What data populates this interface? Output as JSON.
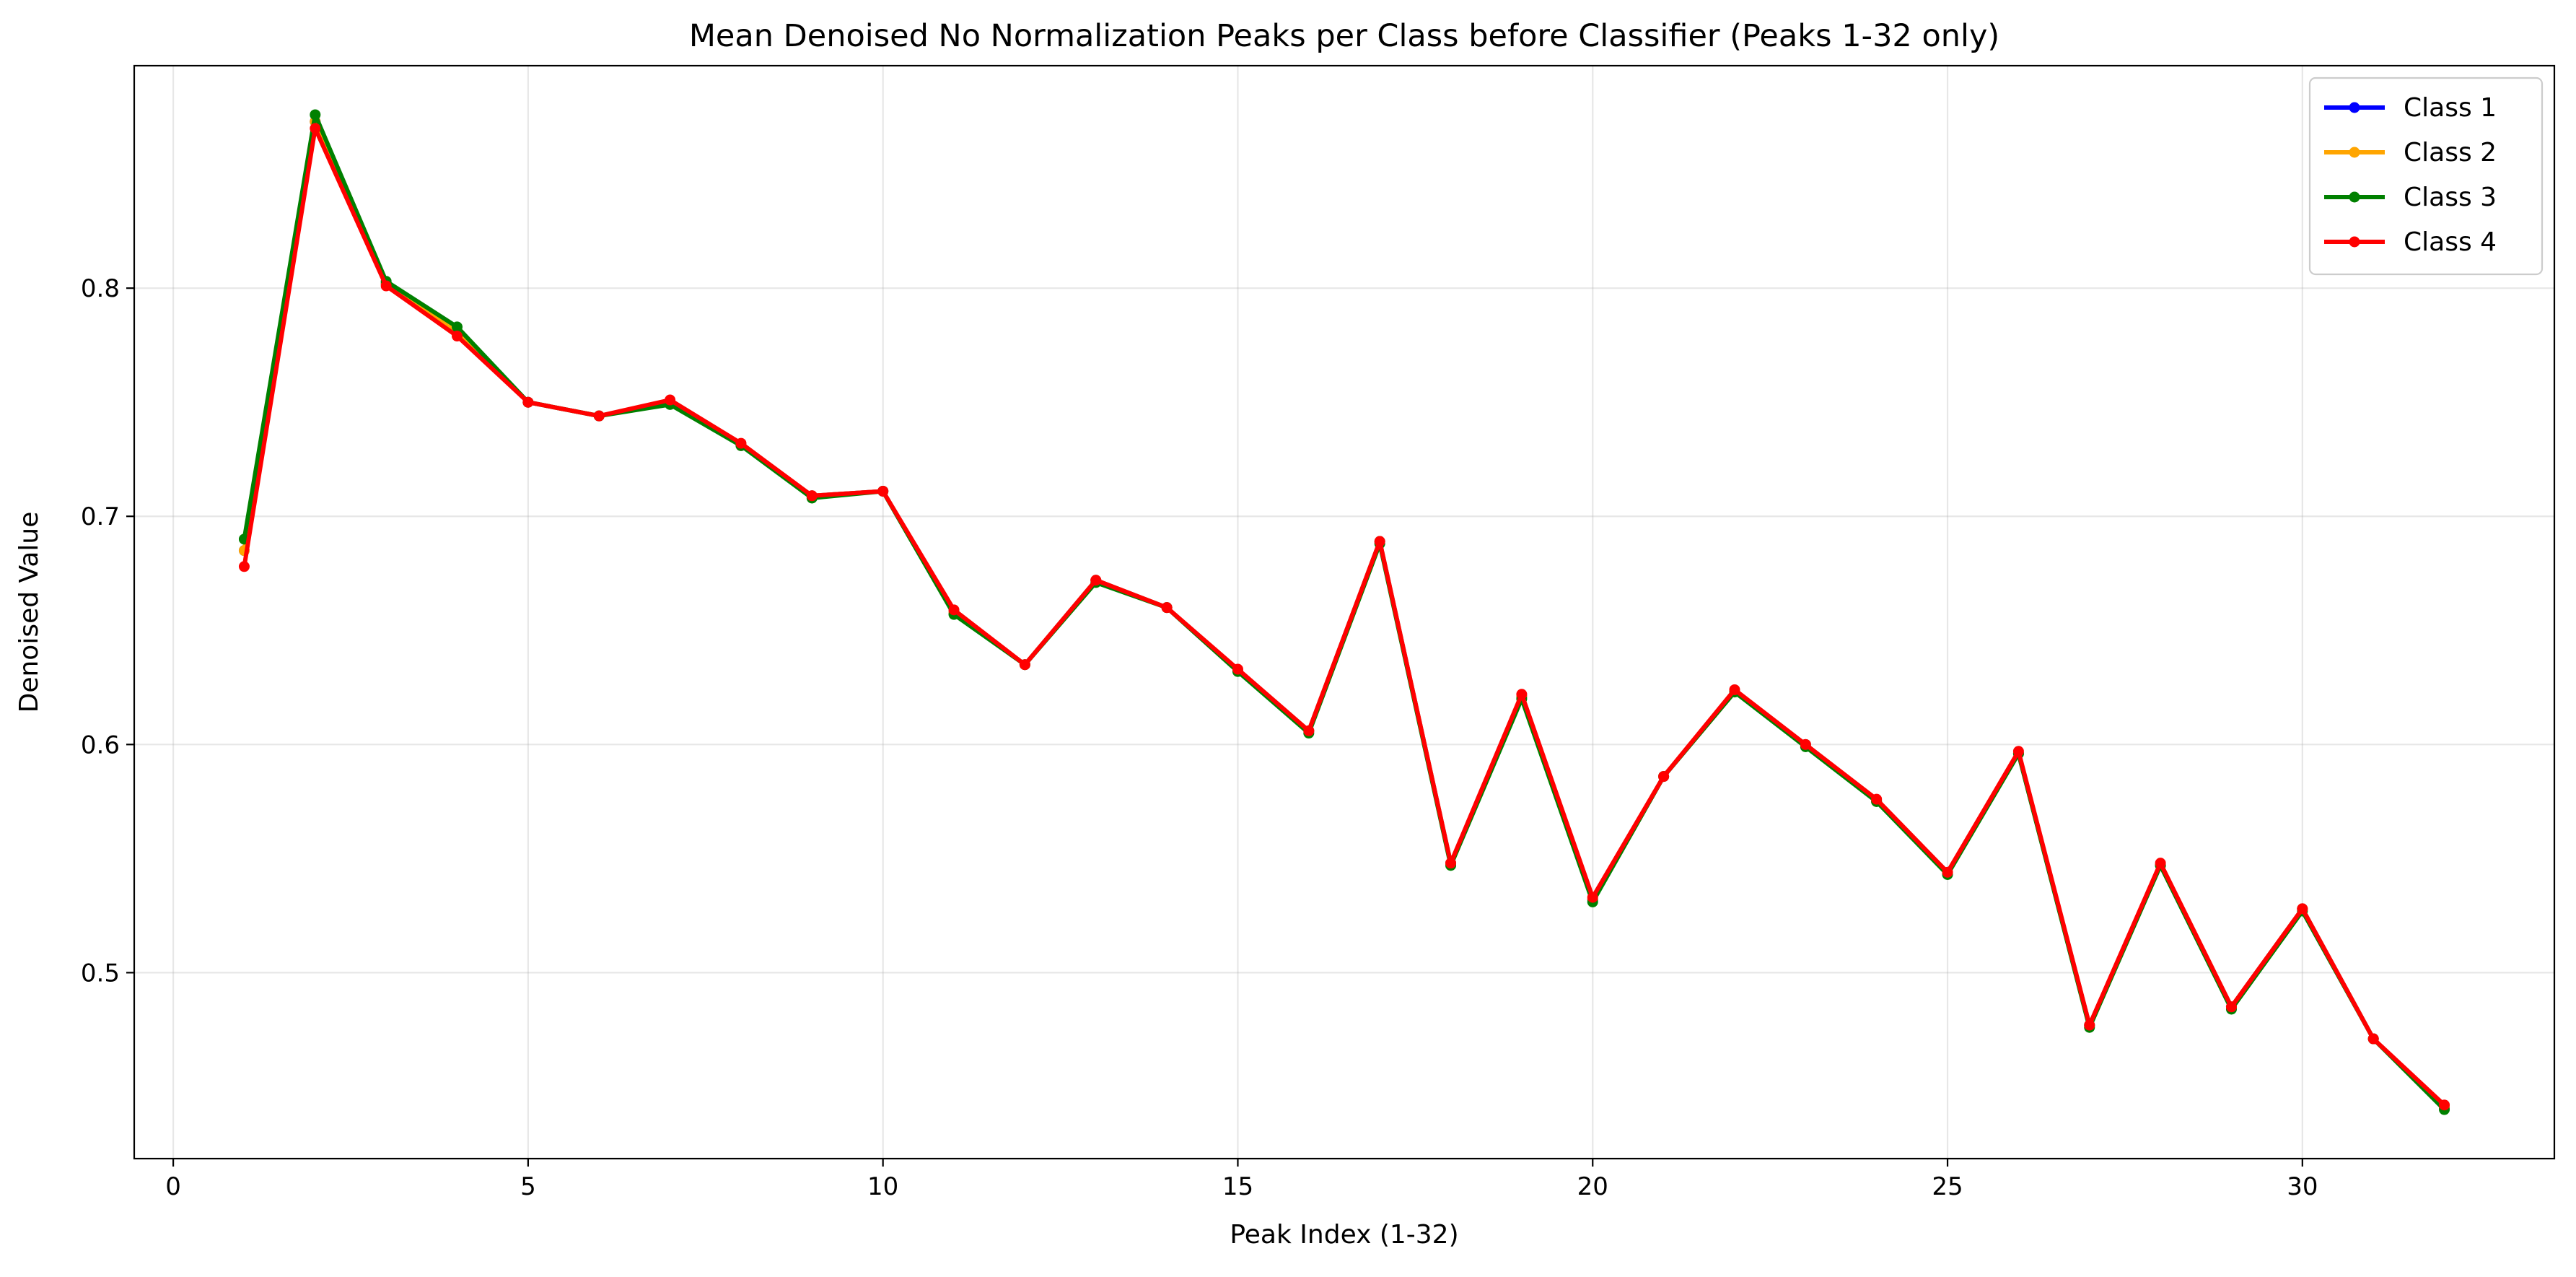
{
  "chart_data": {
    "type": "line",
    "title": "Mean Denoised No Normalization Peaks per Class before Classifier (Peaks 1-32 only)",
    "xlabel": "Peak Index (1-32)",
    "ylabel": "Denoised Value",
    "xlim": [
      -0.55,
      33.55
    ],
    "ylim": [
      0.4185,
      0.8975
    ],
    "xticks": [
      0,
      5,
      10,
      15,
      20,
      25,
      30
    ],
    "xtick_labels": [
      "0",
      "5",
      "10",
      "15",
      "20",
      "25",
      "30"
    ],
    "yticks": [
      0.5,
      0.6,
      0.7,
      0.8
    ],
    "ytick_labels": [
      "0.5",
      "0.6",
      "0.7",
      "0.8"
    ],
    "grid": true,
    "legend_position": "top-right",
    "x": [
      1,
      2,
      3,
      4,
      5,
      6,
      7,
      8,
      9,
      10,
      11,
      12,
      13,
      14,
      15,
      16,
      17,
      18,
      19,
      20,
      21,
      22,
      23,
      24,
      25,
      26,
      27,
      28,
      29,
      30,
      31,
      32
    ],
    "series": [
      {
        "name": "Class 1",
        "color": "#0000ff",
        "values": [
          0.685,
          0.873,
          0.802,
          0.781,
          0.75,
          0.744,
          0.75,
          0.731,
          0.709,
          0.711,
          0.658,
          0.635,
          0.672,
          0.66,
          0.632,
          0.606,
          0.689,
          0.548,
          0.621,
          0.532,
          0.586,
          0.623,
          0.6,
          0.575,
          0.544,
          0.596,
          0.477,
          0.547,
          0.485,
          0.528,
          0.471,
          0.441
        ]
      },
      {
        "name": "Class 2",
        "color": "#ffa500",
        "values": [
          0.685,
          0.873,
          0.802,
          0.781,
          0.75,
          0.744,
          0.75,
          0.731,
          0.709,
          0.711,
          0.658,
          0.635,
          0.672,
          0.66,
          0.632,
          0.606,
          0.689,
          0.548,
          0.621,
          0.532,
          0.586,
          0.623,
          0.6,
          0.575,
          0.544,
          0.596,
          0.477,
          0.547,
          0.485,
          0.528,
          0.471,
          0.441
        ]
      },
      {
        "name": "Class 3",
        "color": "#008000",
        "values": [
          0.69,
          0.876,
          0.803,
          0.783,
          0.75,
          0.744,
          0.749,
          0.731,
          0.708,
          0.711,
          0.657,
          0.635,
          0.671,
          0.66,
          0.632,
          0.605,
          0.688,
          0.547,
          0.62,
          0.531,
          0.586,
          0.623,
          0.599,
          0.575,
          0.543,
          0.596,
          0.476,
          0.547,
          0.484,
          0.527,
          0.471,
          0.44
        ]
      },
      {
        "name": "Class 4",
        "color": "#ff0000",
        "values": [
          0.678,
          0.87,
          0.801,
          0.779,
          0.75,
          0.744,
          0.751,
          0.732,
          0.709,
          0.711,
          0.659,
          0.635,
          0.672,
          0.66,
          0.633,
          0.606,
          0.689,
          0.548,
          0.622,
          0.533,
          0.586,
          0.624,
          0.6,
          0.576,
          0.544,
          0.597,
          0.477,
          0.548,
          0.485,
          0.528,
          0.471,
          0.442
        ]
      }
    ]
  }
}
